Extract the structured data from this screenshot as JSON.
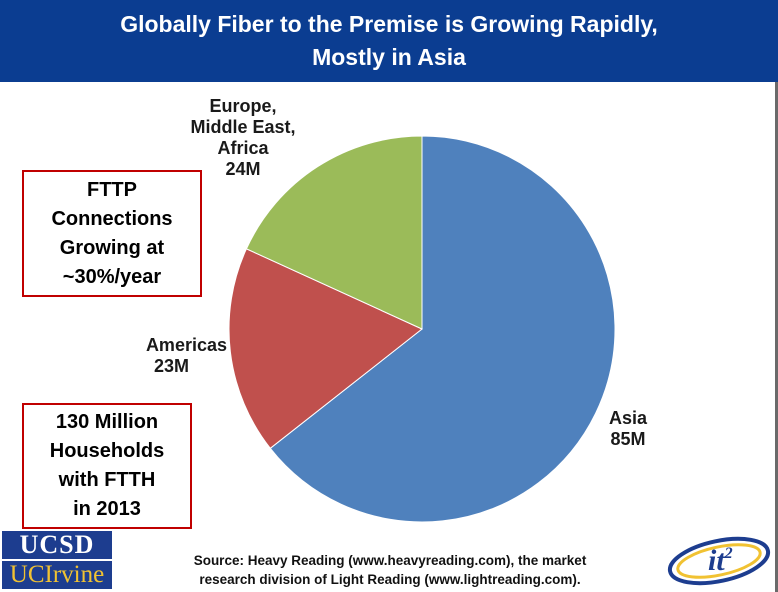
{
  "title": {
    "line1": "Globally Fiber to the Premise is Growing Rapidly,",
    "line2": "Mostly in Asia"
  },
  "callouts": {
    "fttp": [
      "FTTP",
      "Connections",
      "Growing at",
      "~30%/year"
    ],
    "ftth": [
      "130 Million",
      "Households",
      "with FTTH",
      "in 2013"
    ]
  },
  "chart_data": {
    "type": "pie",
    "slices": [
      {
        "label_lines": [
          "Asia",
          "85M"
        ],
        "category": "Asia",
        "value": 85,
        "color": "#4f81bd"
      },
      {
        "label_lines": [
          "Americas",
          "23M"
        ],
        "category": "Americas",
        "value": 23,
        "color": "#c0504d"
      },
      {
        "label_lines": [
          "Europe,",
          "Middle East,",
          "Africa",
          "24M"
        ],
        "category": "Europe, Middle East, Africa",
        "value": 24,
        "color": "#9bbb59"
      }
    ]
  },
  "footer": {
    "source_line1": "Source: Heavy Reading (www.heavyreading.com), the market",
    "source_line2": "research division of Light Reading (www.lightreading.com).",
    "logo_ucsd": "UCSD",
    "logo_uci": "UCIrvine",
    "logo_it2": "it2"
  }
}
